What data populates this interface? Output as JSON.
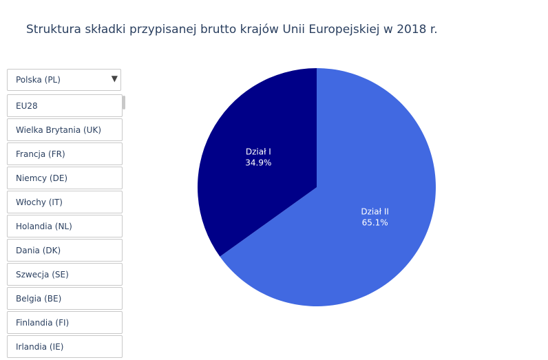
{
  "title": "Struktura składki przypisanej brutto krajów Unii Europejskiej w 2018 r.",
  "dropdown": {
    "selected": "Polska (PL)",
    "options": [
      "EU28",
      "Wielka Brytania (UK)",
      "Francja (FR)",
      "Niemcy (DE)",
      "Włochy (IT)",
      "Holandia (NL)",
      "Dania (DK)",
      "Szwecja (SE)",
      "Belgia (BE)",
      "Finlandia (FI)",
      "Irlandia (IE)"
    ]
  },
  "chart_data": {
    "type": "pie",
    "title": "Struktura składki przypisanej brutto krajów Unii Europejskiej w 2018 r.",
    "slices": [
      {
        "label": "Dział II",
        "value": 65.1,
        "percent_text": "65.1%",
        "color": "#4169e1"
      },
      {
        "label": "Dział I",
        "value": 34.9,
        "percent_text": "34.9%",
        "color": "#000088"
      }
    ],
    "legend": false
  }
}
